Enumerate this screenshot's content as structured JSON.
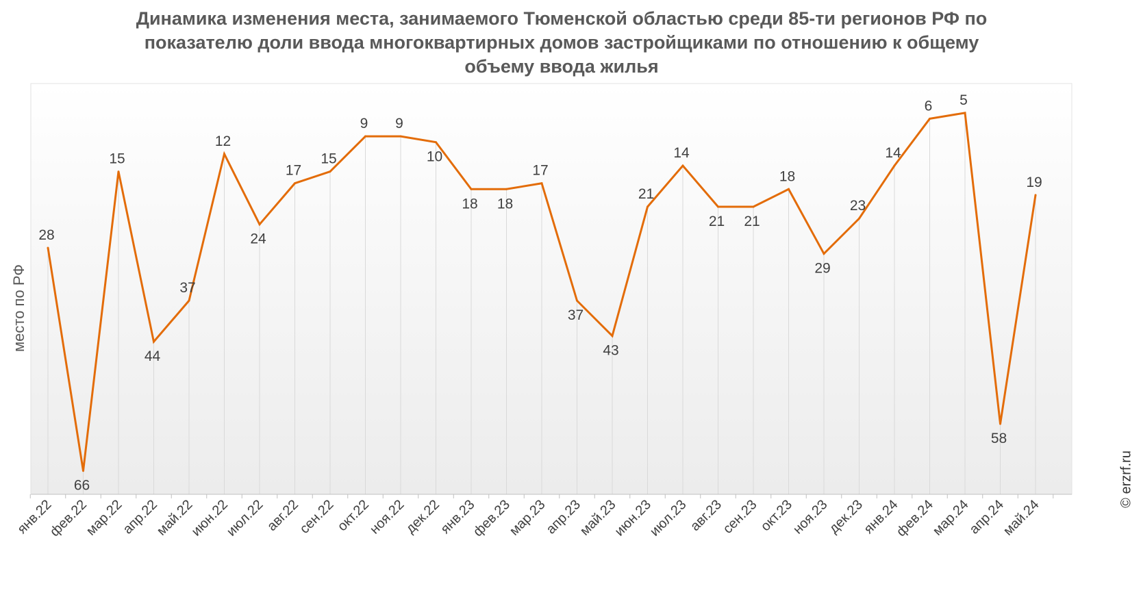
{
  "chart_data": {
    "type": "line",
    "title_lines": [
      "Динамика изменения места, занимаемого Тюменской областью среди 85-ти регионов РФ по",
      "показателю доли ввода многоквартирных домов застройщиками по отношению к общему",
      "объему ввода жилья"
    ],
    "ylabel": "место по РФ",
    "xlabel": "",
    "y_inverted": true,
    "ylim": [
      0,
      70
    ],
    "grid": "vertical",
    "categories": [
      "янв.22",
      "фев.22",
      "мар.22",
      "апр.22",
      "май.22",
      "июн.22",
      "июл.22",
      "авг.22",
      "сен.22",
      "окт.22",
      "ноя.22",
      "дек.22",
      "янв.23",
      "фев.23",
      "мар.23",
      "апр.23",
      "май.23",
      "июн.23",
      "июл.23",
      "авг.23",
      "сен.23",
      "окт.23",
      "ноя.23",
      "дек.23",
      "янв.24",
      "фев.24",
      "мар.24",
      "апр.24",
      "май.24"
    ],
    "series": [
      {
        "color": "#e36c09",
        "values": [
          28,
          66,
          15,
          44,
          37,
          12,
          24,
          17,
          15,
          9,
          9,
          10,
          18,
          18,
          17,
          37,
          43,
          21,
          14,
          21,
          21,
          18,
          29,
          23,
          14,
          6,
          5,
          58,
          19
        ]
      }
    ]
  },
  "credit": "© erzrf.ru"
}
